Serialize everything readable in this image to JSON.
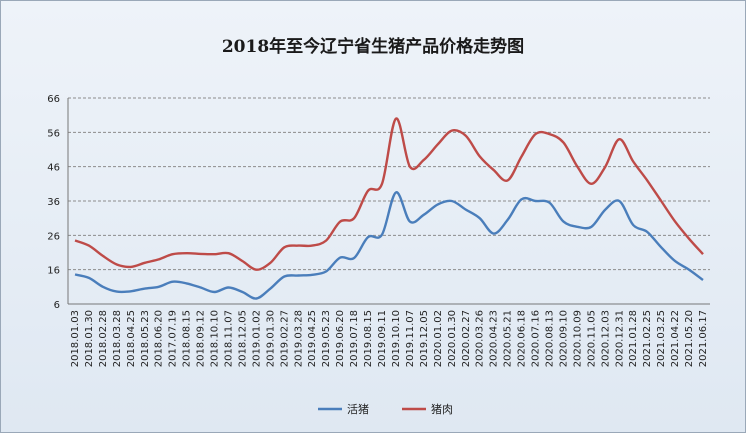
{
  "chart_data": {
    "type": "line",
    "title": "2018年至今辽宁省生猪产品价格走势图",
    "ylim": [
      6,
      66
    ],
    "yticks": [
      6,
      16,
      26,
      36,
      46,
      56,
      66
    ],
    "grid": "horizontal",
    "legend_position": "bottom",
    "x": [
      "2018.01.03",
      "2018.01.30",
      "2018.02.28",
      "2018.03.28",
      "2018.04.25",
      "2018.05.23",
      "2018.06.20",
      "2017.07.19",
      "2018.08.15",
      "2018.09.12",
      "2018.10.10",
      "2018.11.07",
      "2018.12.05",
      "2019.01.02",
      "2019.01.30",
      "2019.02.27",
      "2019.03.28",
      "2019.04.25",
      "2019.05.23",
      "2019.06.20",
      "2019.07.18",
      "2019.08.15",
      "2019.09.11",
      "2019.10.10",
      "2019.11.07",
      "2019.12.05",
      "2020.01.02",
      "2020.01.30",
      "2020.02.27",
      "2020.03.26",
      "2020.04.23",
      "2020.05.21",
      "2020.06.18",
      "2020.07.16",
      "2020.08.13",
      "2020.09.10",
      "2020.10.09",
      "2020.11.05",
      "2020.12.03",
      "2020.12.31",
      "2021.01.28",
      "2021.02.25",
      "2021.03.25",
      "2021.04.22",
      "2021.05.20",
      "2021.06.17"
    ],
    "series": [
      {
        "name": "活猪",
        "color": "#4a7ebb",
        "values": [
          14.6,
          13.6,
          11.0,
          9.6,
          9.7,
          10.5,
          11.0,
          12.5,
          12.0,
          10.8,
          9.5,
          10.8,
          9.5,
          7.6,
          10.5,
          14.0,
          14.3,
          14.5,
          15.5,
          19.5,
          19.4,
          25.5,
          26.2,
          38.5,
          30.0,
          32.0,
          35.0,
          36.0,
          33.5,
          31.0,
          26.5,
          30.5,
          36.5,
          36.0,
          35.5,
          30.0,
          28.5,
          28.5,
          33.5,
          36.0,
          29.0,
          27.0,
          22.5,
          18.5,
          16.0,
          13.0
        ]
      },
      {
        "name": "猪肉",
        "color": "#be4b48",
        "values": [
          24.5,
          23.0,
          20.0,
          17.5,
          16.8,
          18.0,
          19.0,
          20.5,
          20.8,
          20.6,
          20.5,
          20.8,
          18.5,
          16.0,
          18.0,
          22.5,
          23.0,
          23.0,
          24.5,
          30.0,
          31.0,
          39.0,
          41.0,
          60.0,
          46.0,
          48.0,
          52.5,
          56.5,
          55.0,
          49.0,
          45.0,
          42.0,
          49.0,
          55.5,
          55.5,
          53.0,
          46.0,
          41.0,
          46.0,
          54.0,
          47.5,
          42.0,
          36.0,
          30.0,
          25.0,
          20.5
        ]
      }
    ]
  }
}
